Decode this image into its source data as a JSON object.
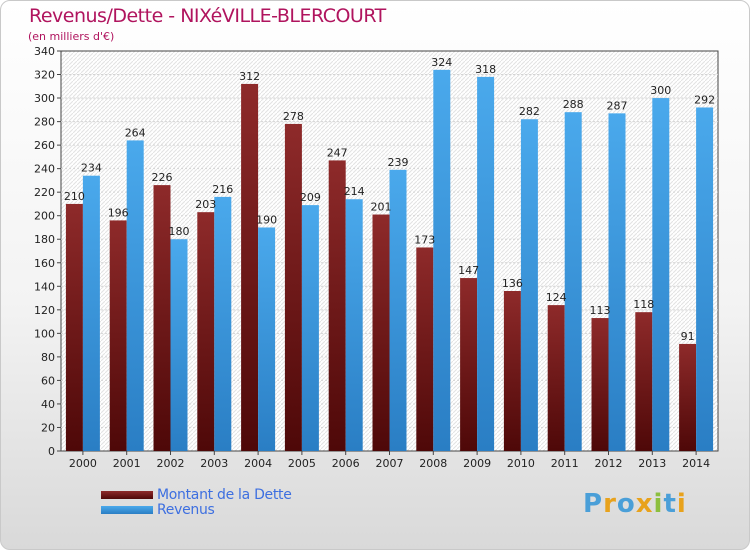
{
  "header": {
    "title": "Revenus/Dette - NIXéVILLE-BLERCOURT",
    "subtitle": "(en milliers d'€)"
  },
  "chart_data": {
    "type": "bar",
    "categories": [
      "2000",
      "2001",
      "2002",
      "2003",
      "2004",
      "2005",
      "2006",
      "2007",
      "2008",
      "2009",
      "2010",
      "2011",
      "2012",
      "2013",
      "2014"
    ],
    "series": [
      {
        "name": "Montant de la Dette",
        "color": "#7a1a1a",
        "values": [
          210,
          196,
          226,
          203,
          312,
          278,
          247,
          201,
          173,
          147,
          136,
          124,
          113,
          118,
          91
        ]
      },
      {
        "name": "Revenus",
        "color": "#3f9ee0",
        "values": [
          234,
          264,
          180,
          216,
          190,
          209,
          214,
          239,
          324,
          318,
          282,
          288,
          287,
          300,
          292
        ]
      }
    ],
    "ylim": [
      0,
      340
    ],
    "yticks": [
      0,
      20,
      40,
      60,
      80,
      100,
      120,
      140,
      160,
      180,
      200,
      220,
      240,
      260,
      280,
      300,
      320,
      340
    ],
    "grid": true,
    "legend": "bottom-left"
  },
  "logo": {
    "text": "Proxiti"
  }
}
